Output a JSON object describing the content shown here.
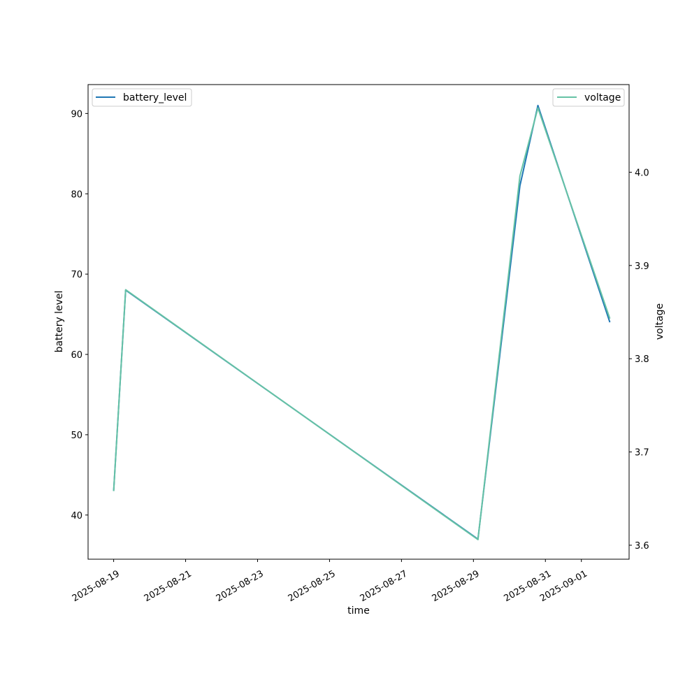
{
  "chart_data": {
    "type": "line",
    "xlabel": "time",
    "ylabel": "battery level",
    "ylabel_right": "voltage",
    "x_ticks": [
      "2025-08-19",
      "2025-08-21",
      "2025-08-23",
      "2025-08-25",
      "2025-08-27",
      "2025-08-29",
      "2025-08-31",
      "2025-09-01"
    ],
    "xlim": [
      "2025-08-18T06:56",
      "2025-09-02T07:50"
    ],
    "ylim_left": [
      34.5,
      93.6
    ],
    "ylim_right": [
      3.585,
      4.094
    ],
    "y_ticks_left": [
      "40",
      "50",
      "60",
      "70",
      "80",
      "90"
    ],
    "y_ticks_right": [
      "3.6",
      "3.7",
      "3.8",
      "3.9",
      "4.0"
    ],
    "series": [
      {
        "name": "battery_level",
        "axis": "left",
        "color": "#1f77b4",
        "legend_position": "upper-left",
        "points": [
          {
            "x": "2025-08-19T00:00",
            "y": 43
          },
          {
            "x": "2025-08-19T08:00",
            "y": 68
          },
          {
            "x": "2025-08-29T03:00",
            "y": 37
          },
          {
            "x": "2025-08-30T07:00",
            "y": 81
          },
          {
            "x": "2025-08-30T19:00",
            "y": 91
          },
          {
            "x": "2025-09-01T19:00",
            "y": 64
          }
        ]
      },
      {
        "name": "voltage",
        "axis": "right",
        "color": "#66c2a5",
        "legend_position": "upper-right",
        "points": [
          {
            "x": "2025-08-19T00:00",
            "y": 3.658
          },
          {
            "x": "2025-08-19T08:00",
            "y": 3.874
          },
          {
            "x": "2025-08-29T03:00",
            "y": 3.606
          },
          {
            "x": "2025-08-30T07:00",
            "y": 3.996
          },
          {
            "x": "2025-08-30T19:00",
            "y": 4.069
          },
          {
            "x": "2025-09-01T19:00",
            "y": 3.843
          }
        ]
      }
    ],
    "grid": false
  }
}
